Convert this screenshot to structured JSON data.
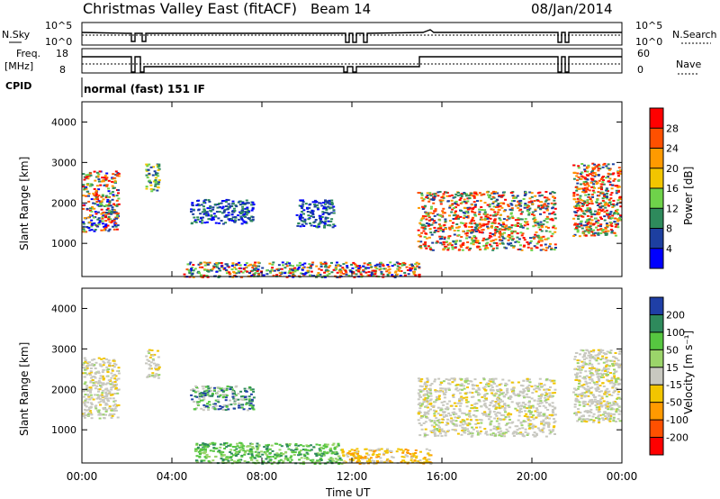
{
  "header": {
    "station": "Christmas Valley East (fitACF)",
    "beam": "Beam 14",
    "date": "08/Jan/2014"
  },
  "top_panels": {
    "nsky_label": "N.Sky",
    "nsky_ticks": [
      "10^5",
      "10^0"
    ],
    "nsearch_label": "N.Search",
    "nsearch_ticks": [
      "10^5",
      "10^0"
    ],
    "freq_label": "Freq.",
    "freq_unit": "[MHz]",
    "freq_ticks": [
      "18",
      "8"
    ],
    "nave_label": "Nave",
    "nave_ticks": [
      "60",
      "0"
    ],
    "cpid_label": "CPID",
    "cpid_text": "normal (fast) 151 IF"
  },
  "chart_data": [
    {
      "type": "heatmap",
      "name": "power",
      "ylabel": "Slant Range [km]",
      "yticks": [
        1000,
        2000,
        3000,
        4000
      ],
      "ylim": [
        180,
        4500
      ],
      "xlim": [
        0,
        24
      ],
      "colorbar": {
        "label": "Power [dB]",
        "ticks": [
          "28",
          "24",
          "20",
          "16",
          "12",
          "8",
          "4"
        ],
        "colors": [
          "#ff0000",
          "#ff5000",
          "#ff9a00",
          "#f2c500",
          "#6fd24a",
          "#2e8a5c",
          "#1d3fa0",
          "#0000ff"
        ]
      },
      "bands": [
        {
          "t0": 0.0,
          "t1": 1.6,
          "r0": 1300,
          "r1": 2800,
          "level": "mixed"
        },
        {
          "t0": 2.8,
          "t1": 3.4,
          "r0": 2300,
          "r1": 3000,
          "level": "mid"
        },
        {
          "t0": 4.8,
          "t1": 7.6,
          "r0": 1500,
          "r1": 2100,
          "level": "low"
        },
        {
          "t0": 9.5,
          "t1": 11.2,
          "r0": 1400,
          "r1": 2100,
          "level": "low"
        },
        {
          "t0": 14.9,
          "t1": 21.0,
          "r0": 850,
          "r1": 2300,
          "level": "high"
        },
        {
          "t0": 21.8,
          "t1": 23.9,
          "r0": 1200,
          "r1": 3000,
          "level": "high"
        },
        {
          "t0": 4.5,
          "t1": 15.0,
          "r0": 180,
          "r1": 550,
          "level": "mixed"
        }
      ]
    },
    {
      "type": "heatmap",
      "name": "velocity",
      "xlabel": "Time UT",
      "ylabel": "Slant Range [km]",
      "xticks": [
        "00:00",
        "04:00",
        "08:00",
        "12:00",
        "16:00",
        "20:00",
        "00:00"
      ],
      "yticks": [
        1000,
        2000,
        3000,
        4000
      ],
      "ylim": [
        180,
        4500
      ],
      "xlim": [
        0,
        24
      ],
      "colorbar": {
        "label": "Velocity [m s⁻¹]",
        "ticks": [
          "200",
          "100",
          "50",
          "15",
          "-15",
          "-50",
          "-100",
          "-200"
        ],
        "colors": [
          "#1f3fa6",
          "#2e8a5c",
          "#56c640",
          "#9bd46a",
          "#c8c8c0",
          "#f2c500",
          "#ff9a00",
          "#ff5000",
          "#ff0000"
        ]
      },
      "bands": [
        {
          "t0": 0.0,
          "t1": 1.6,
          "r0": 1300,
          "r1": 2800,
          "level": "grey"
        },
        {
          "t0": 2.8,
          "t1": 3.4,
          "r0": 2300,
          "r1": 3000,
          "level": "grey"
        },
        {
          "t0": 4.8,
          "t1": 7.6,
          "r0": 1500,
          "r1": 2100,
          "level": "mixed"
        },
        {
          "t0": 14.9,
          "t1": 21.0,
          "r0": 850,
          "r1": 2300,
          "level": "grey"
        },
        {
          "t0": 21.8,
          "t1": 23.9,
          "r0": 1200,
          "r1": 3000,
          "level": "grey"
        },
        {
          "t0": 5.0,
          "t1": 11.5,
          "r0": 180,
          "r1": 700,
          "level": "green"
        },
        {
          "t0": 11.5,
          "t1": 15.5,
          "r0": 180,
          "r1": 550,
          "level": "orange"
        }
      ]
    }
  ]
}
